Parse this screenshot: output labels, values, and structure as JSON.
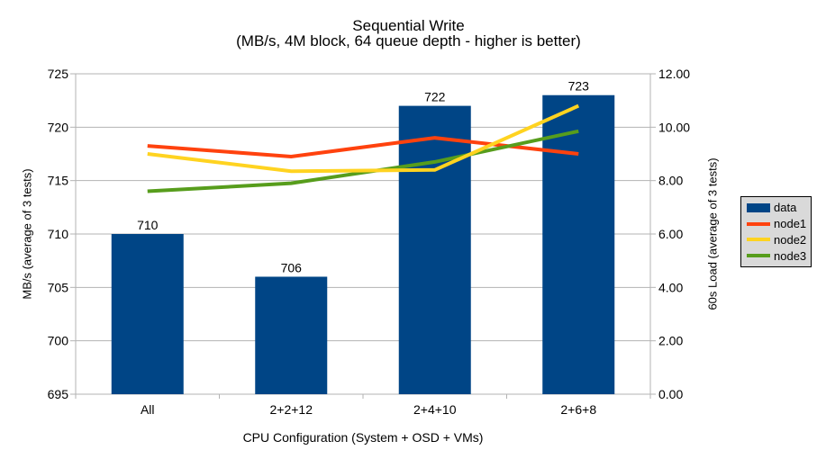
{
  "title": "Sequential Write",
  "subtitle": "(MB/s, 4M block, 64 queue depth - higher is better)",
  "chart_data": {
    "type": "bar+line",
    "title": "Sequential Write",
    "subtitle": "(MB/s, 4M block, 64 queue depth - higher is better)",
    "categories": [
      "All",
      "2+2+12",
      "2+4+10",
      "2+6+8"
    ],
    "series": [
      {
        "name": "data",
        "type": "bar",
        "axis": "left",
        "color": "#004586",
        "values": [
          710,
          706,
          722,
          723
        ]
      },
      {
        "name": "node1",
        "type": "line",
        "axis": "right",
        "color": "#ff420e",
        "values": [
          9.3,
          8.9,
          9.6,
          9.0
        ]
      },
      {
        "name": "node2",
        "type": "line",
        "axis": "right",
        "color": "#ffd320",
        "values": [
          9.0,
          8.35,
          8.4,
          10.8
        ]
      },
      {
        "name": "node3",
        "type": "line",
        "axis": "right",
        "color": "#579d1c",
        "values": [
          7.6,
          7.9,
          8.7,
          9.85
        ]
      }
    ],
    "left_axis": {
      "title": "MB/s (average of 3 tests)",
      "min": 695,
      "max": 725,
      "step": 5,
      "decimals": 0
    },
    "right_axis": {
      "title": "60s Load (average of 3 tests)",
      "min": 0,
      "max": 12,
      "step": 2,
      "decimals": 2
    },
    "x_axis": {
      "title": "CPU Configuration (System + OSD + VMs)"
    },
    "legend": {
      "position": "right",
      "entries": [
        "data",
        "node1",
        "node2",
        "node3"
      ]
    },
    "grid": true
  },
  "colors": {
    "grid": "#b3b3b3",
    "axis": "#b3b3b3",
    "text": "#000000",
    "legend_bg": "#d9d9d9",
    "legend_border": "#000000",
    "background": "#ffffff"
  }
}
